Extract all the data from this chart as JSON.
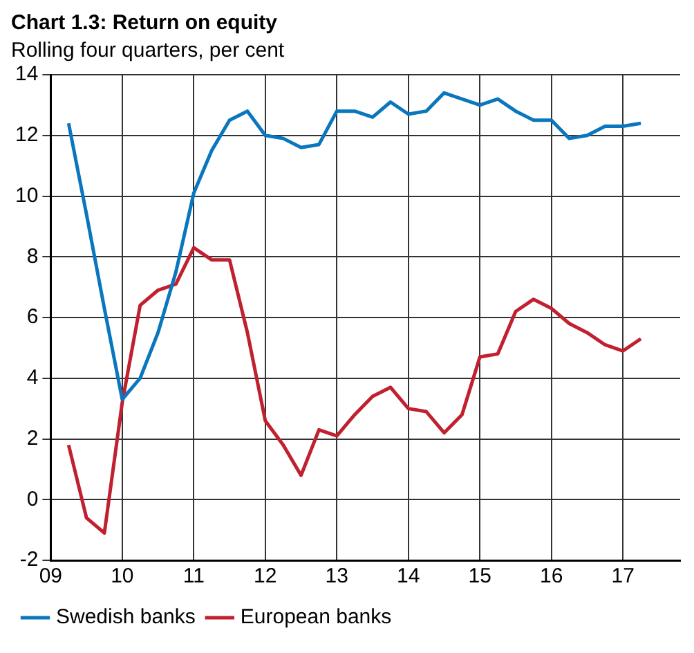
{
  "chart_data": {
    "type": "line",
    "title": "Chart 1.3: Return on equity",
    "subtitle": "Rolling four quarters, per cent",
    "x": [
      9.25,
      9.5,
      9.75,
      10,
      10.25,
      10.5,
      10.75,
      11,
      11.25,
      11.5,
      11.75,
      12,
      12.25,
      12.5,
      12.75,
      13,
      13.25,
      13.5,
      13.75,
      14,
      14.25,
      14.5,
      14.75,
      15,
      15.25,
      15.5,
      15.75,
      16,
      16.25,
      16.5,
      16.75,
      17,
      17.25
    ],
    "series": [
      {
        "name": "Swedish banks",
        "color": "#0a76be",
        "values": [
          12.4,
          9.4,
          6.3,
          3.3,
          4.0,
          5.5,
          7.5,
          10.1,
          11.5,
          12.5,
          12.8,
          12.0,
          11.9,
          11.6,
          11.7,
          12.8,
          12.8,
          12.6,
          13.1,
          12.7,
          12.8,
          13.4,
          13.2,
          13.0,
          13.2,
          12.8,
          12.5,
          12.5,
          11.9,
          12.0,
          12.3,
          12.3,
          12.4
        ]
      },
      {
        "name": "European banks",
        "color": "#c0202f",
        "values": [
          1.8,
          -0.6,
          -1.1,
          3.2,
          6.4,
          6.9,
          7.1,
          8.3,
          7.9,
          7.9,
          5.5,
          2.6,
          1.8,
          0.8,
          2.3,
          2.1,
          2.8,
          3.4,
          3.7,
          3.0,
          2.9,
          2.2,
          2.8,
          4.7,
          4.8,
          6.2,
          6.6,
          6.3,
          5.8,
          5.5,
          5.1,
          4.9,
          5.3
        ]
      }
    ],
    "xlim": [
      9,
      17.8
    ],
    "xticks": [
      {
        "value": 9,
        "label": "09"
      },
      10,
      11,
      12,
      13,
      14,
      15,
      16,
      17
    ],
    "ylim": [
      -2,
      14
    ],
    "yticks": [
      -2,
      0,
      2,
      4,
      6,
      8,
      10,
      12,
      14
    ],
    "grid": true,
    "legend": "bottom",
    "marker": "none",
    "line_style": "solid"
  }
}
